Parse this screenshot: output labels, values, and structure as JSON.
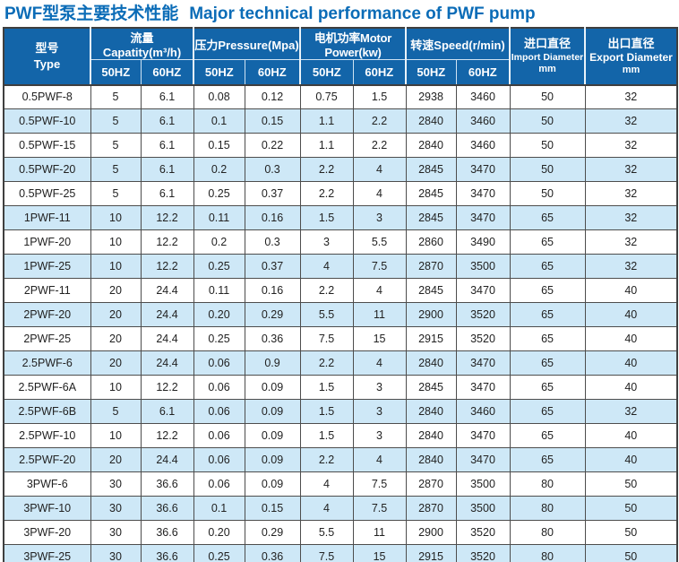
{
  "page_title": {
    "zh": "PWF型泵主要技术性能",
    "en": "Major technical performance of PWF pump"
  },
  "table": {
    "type_header": {
      "zh": "型号",
      "en": "Type"
    },
    "groups": [
      {
        "label": "流量Capatity(m³/h)",
        "hz": [
          "50HZ",
          "60HZ"
        ]
      },
      {
        "label": "压力Pressure(Mpa)",
        "hz": [
          "50HZ",
          "60HZ"
        ]
      },
      {
        "label": "电机功率Motor Power(kw)",
        "hz": [
          "50HZ",
          "60HZ"
        ]
      },
      {
        "label": "转速Speed(r/min)",
        "hz": [
          "50HZ",
          "60HZ"
        ]
      }
    ],
    "import_header": {
      "zh": "进口直径",
      "en": "Import Diameter",
      "unit": "mm"
    },
    "export_header": {
      "zh": "出口直径",
      "en": "Export Diameter",
      "unit": "mm"
    },
    "rows": [
      {
        "model": "0.5PWF-8",
        "values": [
          "5",
          "6.1",
          "0.08",
          "0.12",
          "0.75",
          "1.5",
          "2938",
          "3460",
          "50",
          "32"
        ]
      },
      {
        "model": "0.5PWF-10",
        "values": [
          "5",
          "6.1",
          "0.1",
          "0.15",
          "1.1",
          "2.2",
          "2840",
          "3460",
          "50",
          "32"
        ]
      },
      {
        "model": "0.5PWF-15",
        "values": [
          "5",
          "6.1",
          "0.15",
          "0.22",
          "1.1",
          "2.2",
          "2840",
          "3460",
          "50",
          "32"
        ]
      },
      {
        "model": "0.5PWF-20",
        "values": [
          "5",
          "6.1",
          "0.2",
          "0.3",
          "2.2",
          "4",
          "2845",
          "3470",
          "50",
          "32"
        ]
      },
      {
        "model": "0.5PWF-25",
        "values": [
          "5",
          "6.1",
          "0.25",
          "0.37",
          "2.2",
          "4",
          "2845",
          "3470",
          "50",
          "32"
        ]
      },
      {
        "model": "1PWF-11",
        "values": [
          "10",
          "12.2",
          "0.11",
          "0.16",
          "1.5",
          "3",
          "2845",
          "3470",
          "65",
          "32"
        ]
      },
      {
        "model": "1PWF-20",
        "values": [
          "10",
          "12.2",
          "0.2",
          "0.3",
          "3",
          "5.5",
          "2860",
          "3490",
          "65",
          "32"
        ]
      },
      {
        "model": "1PWF-25",
        "values": [
          "10",
          "12.2",
          "0.25",
          "0.37",
          "4",
          "7.5",
          "2870",
          "3500",
          "65",
          "32"
        ]
      },
      {
        "model": "2PWF-11",
        "values": [
          "20",
          "24.4",
          "0.11",
          "0.16",
          "2.2",
          "4",
          "2845",
          "3470",
          "65",
          "40"
        ]
      },
      {
        "model": "2PWF-20",
        "values": [
          "20",
          "24.4",
          "0.20",
          "0.29",
          "5.5",
          "11",
          "2900",
          "3520",
          "65",
          "40"
        ]
      },
      {
        "model": "2PWF-25",
        "values": [
          "20",
          "24.4",
          "0.25",
          "0.36",
          "7.5",
          "15",
          "2915",
          "3520",
          "65",
          "40"
        ]
      },
      {
        "model": "2.5PWF-6",
        "values": [
          "20",
          "24.4",
          "0.06",
          "0.9",
          "2.2",
          "4",
          "2840",
          "3470",
          "65",
          "40"
        ]
      },
      {
        "model": "2.5PWF-6A",
        "values": [
          "10",
          "12.2",
          "0.06",
          "0.09",
          "1.5",
          "3",
          "2845",
          "3470",
          "65",
          "40"
        ]
      },
      {
        "model": "2.5PWF-6B",
        "values": [
          "5",
          "6.1",
          "0.06",
          "0.09",
          "1.5",
          "3",
          "2840",
          "3460",
          "65",
          "32"
        ]
      },
      {
        "model": "2.5PWF-10",
        "values": [
          "10",
          "12.2",
          "0.06",
          "0.09",
          "1.5",
          "3",
          "2840",
          "3470",
          "65",
          "40"
        ]
      },
      {
        "model": "2.5PWF-20",
        "values": [
          "20",
          "24.4",
          "0.06",
          "0.09",
          "2.2",
          "4",
          "2840",
          "3470",
          "65",
          "40"
        ]
      },
      {
        "model": "3PWF-6",
        "values": [
          "30",
          "36.6",
          "0.06",
          "0.09",
          "4",
          "7.5",
          "2870",
          "3500",
          "80",
          "50"
        ]
      },
      {
        "model": "3PWF-10",
        "values": [
          "30",
          "36.6",
          "0.1",
          "0.15",
          "4",
          "7.5",
          "2870",
          "3500",
          "80",
          "50"
        ]
      },
      {
        "model": "3PWF-20",
        "values": [
          "30",
          "36.6",
          "0.20",
          "0.29",
          "5.5",
          "11",
          "2900",
          "3520",
          "80",
          "50"
        ]
      },
      {
        "model": "3PWF-25",
        "values": [
          "30",
          "36.6",
          "0.25",
          "0.36",
          "7.5",
          "15",
          "2915",
          "3520",
          "80",
          "50"
        ]
      }
    ]
  },
  "colors": {
    "header_bg": "#1365a9",
    "title_text": "#0b6cb7",
    "row_bg": "#ffffff",
    "row_alt_bg": "#cee8f7",
    "body_border": "#4d4d4d",
    "outer_border": "#3f3f3f"
  }
}
